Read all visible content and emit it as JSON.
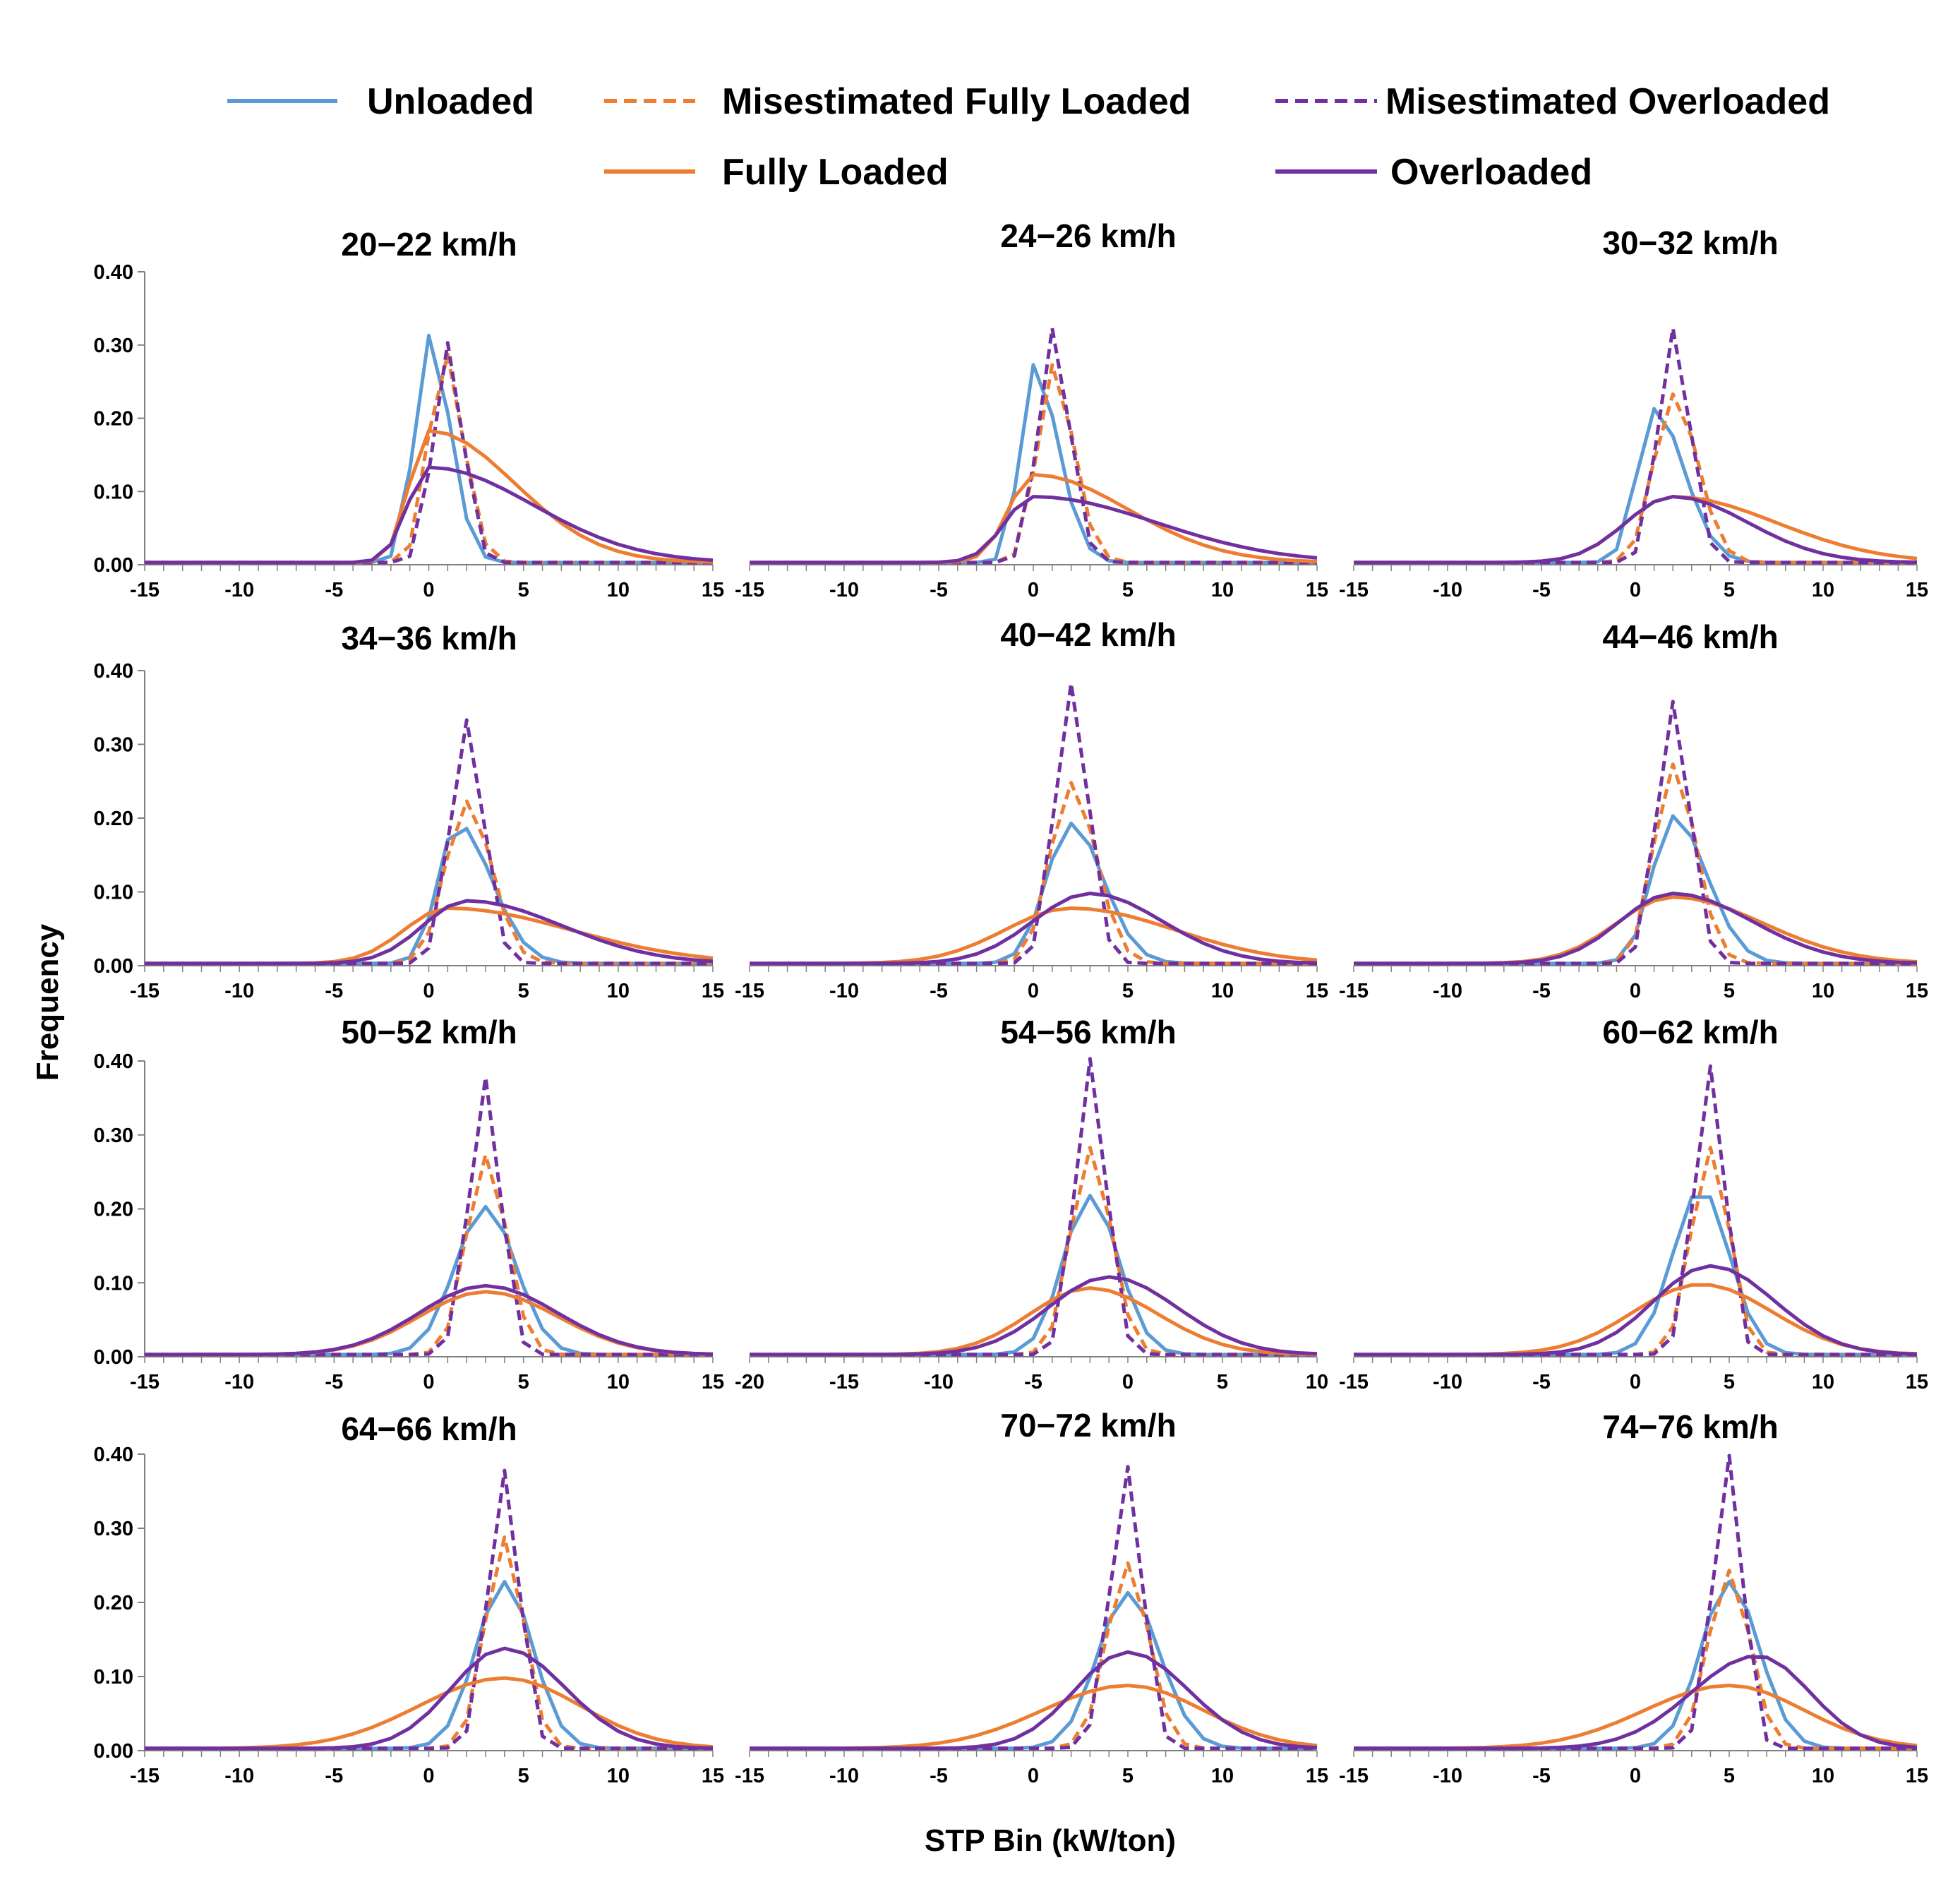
{
  "figure": {
    "ylabel": "Frequency",
    "xlabel": "STP Bin (kW/ton)"
  },
  "colors": {
    "unloaded": "#5b9bd5",
    "fully_loaded": "#ed7d31",
    "overloaded": "#7030a0",
    "axis": "#808080"
  },
  "legend": [
    {
      "key": "unloaded",
      "label": "Unloaded",
      "color": "#5b9bd5",
      "dash": false
    },
    {
      "key": "mis_full",
      "label": "Misestimated Fully Loaded",
      "color": "#ed7d31",
      "dash": true
    },
    {
      "key": "mis_over",
      "label": "Misestimated Overloaded",
      "color": "#7030a0",
      "dash": true
    },
    {
      "key": "full",
      "label": "Fully Loaded",
      "color": "#ed7d31",
      "dash": false
    },
    {
      "key": "over",
      "label": "Overloaded",
      "color": "#7030a0",
      "dash": false
    }
  ],
  "chart_data": [
    {
      "type": "line",
      "title": "20−22 km/h",
      "xlim": [
        -15,
        15
      ],
      "ylim": [
        0,
        0.4
      ],
      "xticks": [
        -15,
        -10,
        -5,
        0,
        5,
        10,
        15
      ],
      "yticks": [
        "0.00",
        "0.10",
        "0.20",
        "0.30",
        "0.40"
      ],
      "series": [
        {
          "key": "unloaded",
          "peak": 0,
          "amp": 0.31,
          "sl": 0.75,
          "sr": 1.1
        },
        {
          "key": "mis_full",
          "peak": 0.8,
          "amp": 0.29,
          "sl": 0.8,
          "sr": 1.0
        },
        {
          "key": "mis_over",
          "peak": 1,
          "amp": 0.3,
          "sl": 0.75,
          "sr": 0.8
        },
        {
          "key": "full",
          "peak": 0,
          "amp": 0.18,
          "sl": 1.0,
          "sr": 4.5
        },
        {
          "key": "over",
          "peak": 0,
          "amp": 0.13,
          "sl": 1.1,
          "sr": 5.5
        }
      ]
    },
    {
      "type": "line",
      "title": "24−26 km/h",
      "xlim": [
        -15,
        15
      ],
      "ylim": [
        0,
        0.4
      ],
      "xticks": [
        -15,
        -10,
        -5,
        0,
        5,
        10,
        15
      ],
      "yticks": [],
      "series": [
        {
          "key": "unloaded",
          "peak": 0,
          "amp": 0.27,
          "sl": 0.7,
          "sr": 1.3
        },
        {
          "key": "mis_full",
          "peak": 1,
          "amp": 0.27,
          "sl": 0.8,
          "sr": 1.1
        },
        {
          "key": "mis_over",
          "peak": 1,
          "amp": 0.32,
          "sl": 0.75,
          "sr": 0.9
        },
        {
          "key": "full",
          "peak": 0,
          "amp": 0.12,
          "sl": 1.3,
          "sr": 5.0
        },
        {
          "key": "over",
          "peak": 0,
          "amp": 0.09,
          "sl": 1.5,
          "sr": 6.5
        }
      ]
    },
    {
      "type": "line",
      "title": "30−32 km/h",
      "xlim": [
        -15,
        15
      ],
      "ylim": [
        0,
        0.4
      ],
      "xticks": [
        -15,
        -10,
        -5,
        0,
        5,
        10,
        15
      ],
      "yticks": [],
      "series": [
        {
          "key": "unloaded",
          "peak": 1,
          "amp": 0.21,
          "sl": 0.9,
          "sr": 1.6
        },
        {
          "key": "mis_full",
          "peak": 2,
          "amp": 0.23,
          "sl": 1.0,
          "sr": 1.3
        },
        {
          "key": "mis_over",
          "peak": 2,
          "amp": 0.32,
          "sl": 0.8,
          "sr": 0.9
        },
        {
          "key": "full",
          "peak": 2,
          "amp": 0.09,
          "sl": 2.5,
          "sr": 5.5
        },
        {
          "key": "over",
          "peak": 2,
          "amp": 0.09,
          "sl": 2.5,
          "sr": 4.0
        }
      ]
    },
    {
      "type": "line",
      "title": "34−36 km/h",
      "xlim": [
        -15,
        15
      ],
      "ylim": [
        0,
        0.4
      ],
      "xticks": [
        -15,
        -10,
        -5,
        0,
        5,
        10,
        15
      ],
      "yticks": [
        "0.00",
        "0.10",
        "0.20",
        "0.30",
        "0.40"
      ],
      "series": [
        {
          "key": "unloaded",
          "peak": 1.5,
          "amp": 0.19,
          "sl": 1.0,
          "sr": 1.8
        },
        {
          "key": "mis_full",
          "peak": 2,
          "amp": 0.22,
          "sl": 1.1,
          "sr": 1.3
        },
        {
          "key": "mis_over",
          "peak": 2,
          "amp": 0.33,
          "sl": 0.85,
          "sr": 0.9
        },
        {
          "key": "full",
          "peak": 1,
          "amp": 0.075,
          "sl": 2.3,
          "sr": 6.5
        },
        {
          "key": "over",
          "peak": 2,
          "amp": 0.085,
          "sl": 2.3,
          "sr": 5.0
        }
      ]
    },
    {
      "type": "line",
      "title": "40−42 km/h",
      "xlim": [
        -15,
        15
      ],
      "ylim": [
        0,
        0.4
      ],
      "xticks": [
        -15,
        -10,
        -5,
        0,
        5,
        10,
        15
      ],
      "yticks": [],
      "series": [
        {
          "key": "unloaded",
          "peak": 2,
          "amp": 0.19,
          "sl": 1.3,
          "sr": 1.7
        },
        {
          "key": "mis_full",
          "peak": 2,
          "amp": 0.245,
          "sl": 1.1,
          "sr": 1.3
        },
        {
          "key": "mis_over",
          "peak": 2,
          "amp": 0.38,
          "sl": 0.85,
          "sr": 0.9
        },
        {
          "key": "full",
          "peak": 2,
          "amp": 0.075,
          "sl": 3.5,
          "sr": 5.5
        },
        {
          "key": "over",
          "peak": 3,
          "amp": 0.095,
          "sl": 3.0,
          "sr": 3.8
        }
      ]
    },
    {
      "type": "line",
      "title": "44−46 km/h",
      "xlim": [
        -15,
        15
      ],
      "ylim": [
        0,
        0.4
      ],
      "xticks": [
        -15,
        -10,
        -5,
        0,
        5,
        10,
        15
      ],
      "yticks": [],
      "series": [
        {
          "key": "unloaded",
          "peak": 2,
          "amp": 0.2,
          "sl": 1.1,
          "sr": 1.8
        },
        {
          "key": "mis_full",
          "peak": 2,
          "amp": 0.27,
          "sl": 1.0,
          "sr": 1.2
        },
        {
          "key": "mis_over",
          "peak": 2,
          "amp": 0.355,
          "sl": 0.85,
          "sr": 0.9
        },
        {
          "key": "full",
          "peak": 2,
          "amp": 0.09,
          "sl": 3.0,
          "sr": 4.8
        },
        {
          "key": "over",
          "peak": 2,
          "amp": 0.095,
          "sl": 2.8,
          "sr": 4.2
        }
      ]
    },
    {
      "type": "line",
      "title": "50−52 km/h",
      "xlim": [
        -15,
        15
      ],
      "ylim": [
        0,
        0.4
      ],
      "xticks": [
        -15,
        -10,
        -5,
        0,
        5,
        10,
        15
      ],
      "yticks": [
        "0.00",
        "0.10",
        "0.20",
        "0.30",
        "0.40"
      ],
      "series": [
        {
          "key": "unloaded",
          "peak": 3,
          "amp": 0.2,
          "sl": 1.6,
          "sr": 1.6
        },
        {
          "key": "mis_full",
          "peak": 3,
          "amp": 0.27,
          "sl": 1.0,
          "sr": 1.1
        },
        {
          "key": "mis_over",
          "peak": 3,
          "amp": 0.375,
          "sl": 0.85,
          "sr": 0.8
        },
        {
          "key": "full",
          "peak": 3,
          "amp": 0.085,
          "sl": 3.5,
          "sr": 3.8
        },
        {
          "key": "over",
          "peak": 3,
          "amp": 0.093,
          "sl": 3.5,
          "sr": 3.8
        }
      ]
    },
    {
      "type": "line",
      "title": "54−56 km/h",
      "xlim": [
        -20,
        10
      ],
      "ylim": [
        0,
        0.4
      ],
      "xticks": [
        -20,
        -15,
        -10,
        -5,
        0,
        5,
        10
      ],
      "yticks": [],
      "series": [
        {
          "key": "unloaded",
          "peak": -2,
          "amp": 0.215,
          "sl": 1.4,
          "sr": 1.5
        },
        {
          "key": "mis_full",
          "peak": -2,
          "amp": 0.28,
          "sl": 1.0,
          "sr": 1.1
        },
        {
          "key": "mis_over",
          "peak": -2,
          "amp": 0.4,
          "sl": 0.8,
          "sr": 0.85
        },
        {
          "key": "full",
          "peak": -2,
          "amp": 0.09,
          "sl": 3.2,
          "sr": 3.6
        },
        {
          "key": "over",
          "peak": -1,
          "amp": 0.105,
          "sl": 3.2,
          "sr": 3.6
        }
      ]
    },
    {
      "type": "line",
      "title": "60−62 km/h",
      "xlim": [
        -15,
        15
      ],
      "ylim": [
        0,
        0.4
      ],
      "xticks": [
        -15,
        -10,
        -5,
        0,
        5,
        10,
        15
      ],
      "yticks": [],
      "series": [
        {
          "key": "unloaded",
          "peak": 3.5,
          "amp": 0.225,
          "sl": 1.5,
          "sr": 1.5
        },
        {
          "key": "mis_full",
          "peak": 4,
          "amp": 0.28,
          "sl": 1.0,
          "sr": 1.0
        },
        {
          "key": "mis_over",
          "peak": 4,
          "amp": 0.39,
          "sl": 0.85,
          "sr": 0.8
        },
        {
          "key": "full",
          "peak": 3.5,
          "amp": 0.095,
          "sl": 3.6,
          "sr": 3.8
        },
        {
          "key": "over",
          "peak": 4,
          "amp": 0.12,
          "sl": 3.0,
          "sr": 3.4
        }
      ]
    },
    {
      "type": "line",
      "title": "64−66 km/h",
      "xlim": [
        -15,
        15
      ],
      "ylim": [
        0,
        0.4
      ],
      "xticks": [
        -15,
        -10,
        -5,
        0,
        5,
        10,
        15
      ],
      "yticks": [
        "0.00",
        "0.10",
        "0.20",
        "0.30",
        "0.40"
      ],
      "series": [
        {
          "key": "unloaded",
          "peak": 4,
          "amp": 0.225,
          "sl": 1.5,
          "sr": 1.5
        },
        {
          "key": "mis_full",
          "peak": 4,
          "amp": 0.285,
          "sl": 1.0,
          "sr": 1.0
        },
        {
          "key": "mis_over",
          "peak": 4,
          "amp": 0.375,
          "sl": 0.85,
          "sr": 0.8
        },
        {
          "key": "full",
          "peak": 4,
          "amp": 0.095,
          "sl": 4.5,
          "sr": 4.0
        },
        {
          "key": "over",
          "peak": 4,
          "amp": 0.135,
          "sl": 2.8,
          "sr": 3.2
        }
      ]
    },
    {
      "type": "line",
      "title": "70−72 km/h",
      "xlim": [
        -15,
        15
      ],
      "ylim": [
        0,
        0.4
      ],
      "xticks": [
        -15,
        -10,
        -5,
        0,
        5,
        10,
        15
      ],
      "yticks": [],
      "series": [
        {
          "key": "unloaded",
          "peak": 5,
          "amp": 0.21,
          "sl": 1.6,
          "sr": 1.7
        },
        {
          "key": "mis_full",
          "peak": 5,
          "amp": 0.25,
          "sl": 1.1,
          "sr": 1.1
        },
        {
          "key": "mis_over",
          "peak": 5,
          "amp": 0.38,
          "sl": 0.9,
          "sr": 0.8
        },
        {
          "key": "full",
          "peak": 5,
          "amp": 0.085,
          "sl": 4.5,
          "sr": 4.0
        },
        {
          "key": "over",
          "peak": 5,
          "amp": 0.13,
          "sl": 2.8,
          "sr": 3.2
        }
      ]
    },
    {
      "type": "line",
      "title": "74−76 km/h",
      "xlim": [
        -15,
        15
      ],
      "ylim": [
        0,
        0.4
      ],
      "xticks": [
        -15,
        -10,
        -5,
        0,
        5,
        10,
        15
      ],
      "yticks": [],
      "series": [
        {
          "key": "unloaded",
          "peak": 5,
          "amp": 0.225,
          "sl": 1.5,
          "sr": 1.6
        },
        {
          "key": "mis_full",
          "peak": 5,
          "amp": 0.24,
          "sl": 1.1,
          "sr": 1.1
        },
        {
          "key": "mis_over",
          "peak": 5,
          "amp": 0.395,
          "sl": 0.85,
          "sr": 0.75
        },
        {
          "key": "full",
          "peak": 5,
          "amp": 0.085,
          "sl": 4.5,
          "sr": 4.0
        },
        {
          "key": "over",
          "peak": 6.5,
          "amp": 0.125,
          "sl": 3.5,
          "sr": 2.8
        }
      ]
    }
  ]
}
